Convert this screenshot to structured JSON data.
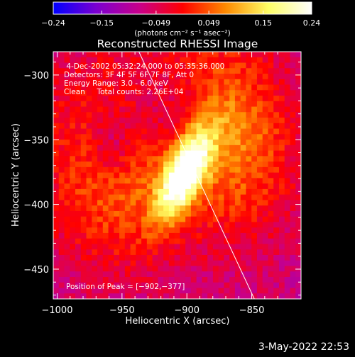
{
  "chart_data": {
    "type": "heatmap",
    "title": "Reconstructed RHESSI Image",
    "xlabel": "Heliocentric X (arcsec)",
    "ylabel": "Heliocentric Y (arcsec)",
    "xlim": [
      -1003,
      -812
    ],
    "ylim": [
      -473,
      -282
    ],
    "x_ticks": [
      -1000,
      -950,
      -900,
      -850
    ],
    "x_tick_labels": [
      "−1000",
      "−950",
      "−900",
      "−850"
    ],
    "y_ticks": [
      -300,
      -350,
      -400,
      -450
    ],
    "y_tick_labels": [
      "−300",
      "−350",
      "−400",
      "−450"
    ],
    "colorbar": {
      "range": [
        -0.24,
        0.24
      ],
      "ticks": [
        -0.24,
        -0.15,
        -0.049,
        0.049,
        0.15,
        0.24
      ],
      "tick_labels": [
        "−0.24",
        "−0.15",
        "−0.049",
        "0.049",
        "0.15",
        "0.24"
      ],
      "unit_label": "(photons cm⁻² s⁻¹ asec⁻²)",
      "colors": [
        "#0000ff",
        "#7b00d0",
        "#c8008a",
        "#ff0000",
        "#ff8a00",
        "#ffff66",
        "#ffffff"
      ]
    },
    "annotations": [
      " 4-Dec-2002 05:32:24.000 to 05:35:36.000",
      "Detectors: 3F 4F 5F 6F 7F 8F, Att 0",
      "Energy Range: 3.0 - 6.0 keV",
      "Clean     Total counts: 2.26E+04"
    ],
    "peak_label": "Position of Peak = [−902,−377]",
    "peak": [
      -902,
      -377
    ],
    "limb_line": [
      [
        -937,
        -282
      ],
      [
        -848,
        -473
      ]
    ],
    "background_value": -0.08,
    "components": [
      {
        "x": -902,
        "y": -377,
        "sx": 10,
        "sy": 26,
        "amp": 0.29,
        "rot": -25
      },
      {
        "x": -935,
        "y": -350,
        "sx": 65,
        "sy": 62,
        "amp": 0.1,
        "rot": 0
      },
      {
        "x": -862,
        "y": -345,
        "sx": 32,
        "sy": 55,
        "amp": 0.11,
        "rot": 10
      },
      {
        "x": -958,
        "y": -395,
        "sx": 32,
        "sy": 45,
        "amp": 0.06,
        "rot": 0
      },
      {
        "x": -915,
        "y": -330,
        "sx": 25,
        "sy": 25,
        "amp": -0.08,
        "rot": 0
      },
      {
        "x": -958,
        "y": -355,
        "sx": 14,
        "sy": 20,
        "amp": -0.08,
        "rot": 0
      }
    ],
    "timestamp": "3-May-2022 22:53"
  }
}
